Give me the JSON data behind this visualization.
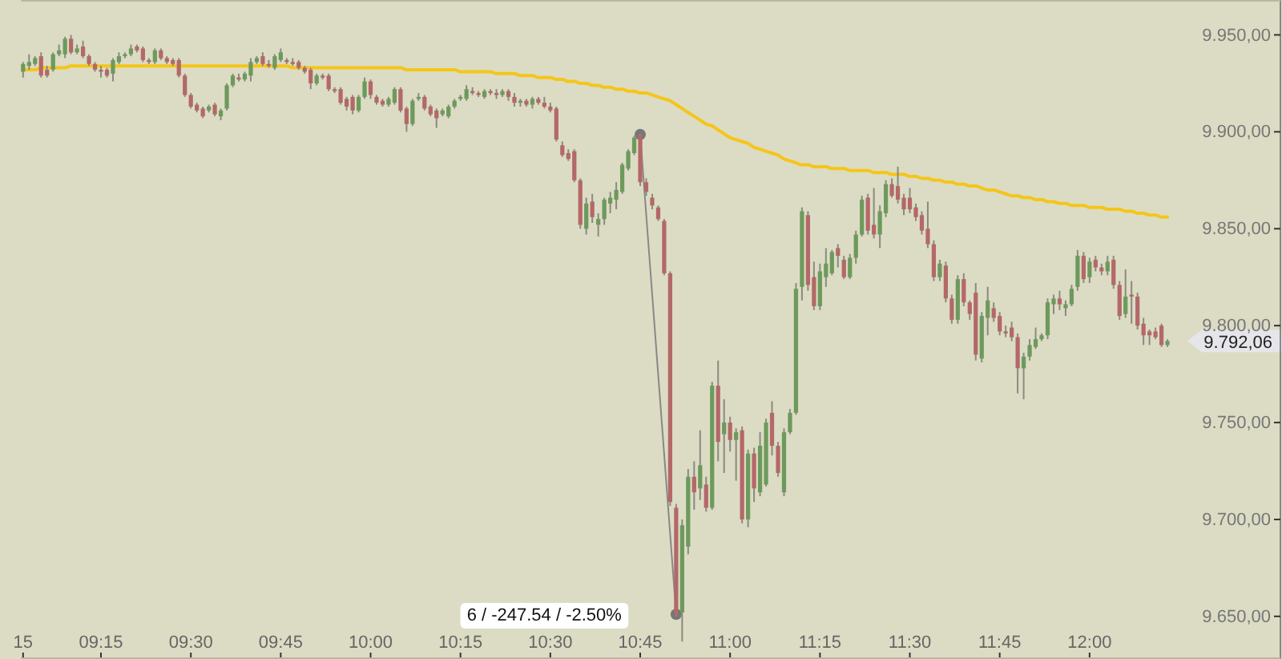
{
  "chart_data": {
    "type": "candlestick",
    "categories": [
      "15",
      null,
      null,
      null,
      null,
      null,
      null,
      null,
      null,
      null,
      null,
      null,
      null,
      "09:15",
      null,
      null,
      null,
      null,
      null,
      null,
      null,
      null,
      null,
      null,
      null,
      null,
      null,
      null,
      "09:30",
      null,
      null,
      null,
      null,
      null,
      null,
      null,
      null,
      null,
      null,
      null,
      null,
      null,
      null,
      "09:45",
      null,
      null,
      null,
      null,
      null,
      null,
      null,
      null,
      null,
      null,
      null,
      null,
      null,
      null,
      "10:00",
      null,
      null,
      null,
      null,
      null,
      null,
      null,
      null,
      null,
      null,
      null,
      null,
      null,
      null,
      "10:15",
      null,
      null,
      null,
      null,
      null,
      null,
      null,
      null,
      null,
      null,
      null,
      null,
      null,
      null,
      "10:30",
      null,
      null,
      null,
      null,
      null,
      null,
      null,
      null,
      null,
      null,
      null,
      null,
      null,
      null,
      "10:45",
      null,
      null,
      null,
      null,
      null,
      null,
      null,
      null,
      null,
      null,
      null,
      null,
      null,
      null,
      "11:00",
      null,
      null,
      null,
      null,
      null,
      null,
      null,
      null,
      null,
      null,
      null,
      null,
      null,
      null,
      "11:15",
      null,
      null,
      null,
      null,
      null,
      null,
      null,
      null,
      null,
      null,
      null,
      null,
      null,
      null,
      "11:30",
      null,
      null,
      null,
      null,
      null,
      null,
      null,
      null,
      null,
      null,
      null,
      null,
      null,
      null,
      "11:45",
      null,
      null,
      null,
      null,
      null,
      null,
      null,
      null,
      null,
      null,
      null,
      null,
      null,
      null,
      "12:00",
      null,
      null,
      null,
      null,
      null,
      null,
      null,
      null,
      null,
      null,
      null,
      null,
      null
    ],
    "ohlc": [
      [
        9931,
        9936,
        9928,
        9935
      ],
      [
        9934,
        9940,
        9932,
        9936
      ],
      [
        9935,
        9939,
        9934,
        9938
      ],
      [
        9939,
        9941,
        9928,
        9929
      ],
      [
        9932,
        9934,
        9928,
        9929
      ],
      [
        9932,
        9941,
        9931,
        9940
      ],
      [
        9940,
        9945,
        9939,
        9942
      ],
      [
        9940,
        9949,
        9938,
        9948
      ],
      [
        9948,
        9950,
        9940,
        9941
      ],
      [
        9941,
        9945,
        9940,
        9943
      ],
      [
        9944,
        9947,
        9938,
        9939
      ],
      [
        9939,
        9940,
        9934,
        9935
      ],
      [
        9935,
        9936,
        9931,
        9932
      ],
      [
        9932,
        9934,
        9928,
        9931
      ],
      [
        9932,
        9933,
        9928,
        9929
      ],
      [
        9930,
        9938,
        9926,
        9937
      ],
      [
        9936,
        9941,
        9935,
        9939
      ],
      [
        9939,
        9941,
        9938,
        9940
      ],
      [
        9940,
        9945,
        9939,
        9943
      ],
      [
        9944,
        9945,
        9941,
        9942
      ],
      [
        9943,
        9944,
        9936,
        9937
      ],
      [
        9937,
        9938,
        9935,
        9936
      ],
      [
        9936,
        9943,
        9935,
        9942
      ],
      [
        9942,
        9943,
        9937,
        9938
      ],
      [
        9938,
        9939,
        9935,
        9936
      ],
      [
        9937,
        9938,
        9934,
        9935
      ],
      [
        9937,
        9938,
        9928,
        9929
      ],
      [
        9929,
        9930,
        9918,
        9919
      ],
      [
        9919,
        9920,
        9912,
        9913
      ],
      [
        9914,
        9915,
        9910,
        9911
      ],
      [
        9912,
        9913,
        9907,
        9908
      ],
      [
        9911,
        9914,
        9910,
        9913
      ],
      [
        9914,
        9915,
        9908,
        9909
      ],
      [
        9908,
        9912,
        9906,
        9911
      ],
      [
        9912,
        9925,
        9911,
        9924
      ],
      [
        9924,
        9930,
        9923,
        9929
      ],
      [
        9928,
        9930,
        9926,
        9927
      ],
      [
        9927,
        9931,
        9926,
        9930
      ],
      [
        9929,
        9938,
        9926,
        9936
      ],
      [
        9936,
        9939,
        9935,
        9938
      ],
      [
        9939,
        9941,
        9934,
        9935
      ],
      [
        9935,
        9937,
        9933,
        9934
      ],
      [
        9933,
        9940,
        9932,
        9939
      ],
      [
        9937,
        9943,
        9936,
        9941
      ],
      [
        9937,
        9938,
        9935,
        9936
      ],
      [
        9936,
        9938,
        9934,
        9935
      ],
      [
        9936,
        9937,
        9932,
        9933
      ],
      [
        9933,
        9934,
        9930,
        9931
      ],
      [
        9932,
        9933,
        9922,
        9925
      ],
      [
        9925,
        9930,
        9924,
        9929
      ],
      [
        9929,
        9930,
        9927,
        9928
      ],
      [
        9929,
        9930,
        9921,
        9922
      ],
      [
        9922,
        9923,
        9920,
        9921
      ],
      [
        9922,
        9923,
        9914,
        9915
      ],
      [
        9917,
        9918,
        9911,
        9913
      ],
      [
        9918,
        9919,
        9909,
        9911
      ],
      [
        9911,
        9919,
        9910,
        9918
      ],
      [
        9918,
        9928,
        9917,
        9926
      ],
      [
        9926,
        9927,
        9917,
        9919
      ],
      [
        9918,
        9919,
        9914,
        9915
      ],
      [
        9916,
        9917,
        9913,
        9914
      ],
      [
        9914,
        9918,
        9913,
        9917
      ],
      [
        9915,
        9923,
        9914,
        9922
      ],
      [
        9922,
        9923,
        9910,
        9911
      ],
      [
        9912,
        9913,
        9900,
        9904
      ],
      [
        9904,
        9917,
        9903,
        9916
      ],
      [
        9917,
        9920,
        9916,
        9918
      ],
      [
        9918,
        9919,
        9911,
        9912
      ],
      [
        9913,
        9914,
        9908,
        9909
      ],
      [
        9911,
        9912,
        9902,
        9907
      ],
      [
        9909,
        9912,
        9908,
        9911
      ],
      [
        9908,
        9914,
        9907,
        9913
      ],
      [
        9913,
        9917,
        9912,
        9916
      ],
      [
        9917,
        9919,
        9916,
        9918
      ],
      [
        9917,
        9924,
        9916,
        9922
      ],
      [
        9921,
        9923,
        9919,
        9920
      ],
      [
        9920,
        9921,
        9918,
        9919
      ],
      [
        9918,
        9922,
        9917,
        9921
      ],
      [
        9921,
        9922,
        9919,
        9920
      ],
      [
        9920,
        9922,
        9917,
        9919
      ],
      [
        9919,
        9922,
        9918,
        9921
      ],
      [
        9921,
        9922,
        9916,
        9918
      ],
      [
        9918,
        9920,
        9913,
        9915
      ],
      [
        9915,
        9917,
        9913,
        9916
      ],
      [
        9916,
        9917,
        9913,
        9914
      ],
      [
        9914,
        9918,
        9912,
        9917
      ],
      [
        9917,
        9918,
        9914,
        9915
      ],
      [
        9915,
        9918,
        9912,
        9913
      ],
      [
        9913,
        9915,
        9910,
        9911
      ],
      [
        9912,
        9913,
        9895,
        9896
      ],
      [
        9893,
        9895,
        9887,
        9888
      ],
      [
        9889,
        9891,
        9885,
        9886
      ],
      [
        9890,
        9891,
        9874,
        9875
      ],
      [
        9875,
        9876,
        9850,
        9852
      ],
      [
        9850,
        9866,
        9847,
        9863
      ],
      [
        9864,
        9868,
        9853,
        9856
      ],
      [
        9852,
        9858,
        9846,
        9855
      ],
      [
        9855,
        9866,
        9852,
        9865
      ],
      [
        9863,
        9869,
        9858,
        9866
      ],
      [
        9865,
        9874,
        9860,
        9870
      ],
      [
        9869,
        9884,
        9868,
        9883
      ],
      [
        9881,
        9891,
        9880,
        9890
      ],
      [
        9889,
        9898,
        9888,
        9897
      ],
      [
        9898.6,
        9899,
        9872,
        9874
      ],
      [
        9874,
        9876,
        9867,
        9869
      ],
      [
        9866,
        9868,
        9860,
        9862
      ],
      [
        9861,
        9862,
        9854,
        9855
      ],
      [
        9854,
        9855,
        9826,
        9827
      ],
      [
        9827,
        9828,
        9707,
        9709
      ],
      [
        9706,
        9708,
        9650,
        9651.06
      ],
      [
        9652,
        9700,
        9637,
        9697
      ],
      [
        9686,
        9726,
        9682,
        9722
      ],
      [
        9722,
        9730,
        9705,
        9714
      ],
      [
        9716,
        9746,
        9710,
        9728
      ],
      [
        9718,
        9722,
        9704,
        9706
      ],
      [
        9706,
        9771,
        9705,
        9769
      ],
      [
        9769,
        9782,
        9730,
        9740
      ],
      [
        9744,
        9762,
        9724,
        9750
      ],
      [
        9750,
        9753,
        9735,
        9741
      ],
      [
        9741,
        9747,
        9720,
        9745
      ],
      [
        9746,
        9748,
        9698,
        9700
      ],
      [
        9700,
        9736,
        9696,
        9734
      ],
      [
        9734,
        9737,
        9709,
        9716
      ],
      [
        9714,
        9745,
        9712,
        9738
      ],
      [
        9718,
        9752,
        9717,
        9750
      ],
      [
        9755,
        9761,
        9733,
        9738
      ],
      [
        9738,
        9740,
        9722,
        9724
      ],
      [
        9714,
        9747,
        9712,
        9745
      ],
      [
        9745,
        9757,
        9744,
        9755
      ],
      [
        9755,
        9822,
        9754,
        9819
      ],
      [
        9820,
        9861,
        9813,
        9859
      ],
      [
        9857,
        9859,
        9818,
        9821
      ],
      [
        9825,
        9833,
        9808,
        9810
      ],
      [
        9810,
        9832,
        9808,
        9828
      ],
      [
        9825,
        9840,
        9820,
        9832
      ],
      [
        9827,
        9839,
        9826,
        9838
      ],
      [
        9840,
        9842,
        9830,
        9836
      ],
      [
        9834,
        9836,
        9824,
        9825
      ],
      [
        9825,
        9837,
        9824,
        9835
      ],
      [
        9835,
        9849,
        9832,
        9847
      ],
      [
        9847,
        9867,
        9846,
        9865
      ],
      [
        9866,
        9868,
        9847,
        9849
      ],
      [
        9852,
        9871,
        9845,
        9847
      ],
      [
        9847,
        9862,
        9840,
        9859
      ],
      [
        9858,
        9875,
        9856,
        9873
      ],
      [
        9873,
        9876,
        9866,
        9867
      ],
      [
        9872,
        9882,
        9863,
        9865
      ],
      [
        9866,
        9868,
        9857,
        9860
      ],
      [
        9866,
        9871,
        9858,
        9860
      ],
      [
        9861,
        9863,
        9854,
        9856
      ],
      [
        9857,
        9859,
        9847,
        9849
      ],
      [
        9850,
        9864,
        9840,
        9842
      ],
      [
        9842,
        9844,
        9823,
        9825
      ],
      [
        9825,
        9834,
        9823,
        9832
      ],
      [
        9831,
        9833,
        9812,
        9814
      ],
      [
        9814,
        9816,
        9801,
        9803
      ],
      [
        9803,
        9826,
        9801,
        9824
      ],
      [
        9824,
        9827,
        9810,
        9812
      ],
      [
        9812,
        9813,
        9803,
        9806
      ],
      [
        9817,
        9822,
        9782,
        9785
      ],
      [
        9783,
        9807,
        9781,
        9805
      ],
      [
        9804,
        9820,
        9795,
        9813
      ],
      [
        9809,
        9812,
        9802,
        9804
      ],
      [
        9805,
        9807,
        9795,
        9797
      ],
      [
        9797,
        9800,
        9794,
        9796
      ],
      [
        9799,
        9802,
        9792,
        9794
      ],
      [
        9794,
        9796,
        9765,
        9778
      ],
      [
        9778,
        9786,
        9762,
        9784
      ],
      [
        9784,
        9793,
        9782,
        9790
      ],
      [
        9789,
        9799,
        9788,
        9793
      ],
      [
        9793,
        9796,
        9792,
        9795
      ],
      [
        9795,
        9814,
        9793,
        9812
      ],
      [
        9811,
        9816,
        9806,
        9814
      ],
      [
        9814,
        9818,
        9808,
        9811
      ],
      [
        9809,
        9813,
        9805,
        9811
      ],
      [
        9811,
        9821,
        9810,
        9819
      ],
      [
        9820,
        9839,
        9818,
        9836
      ],
      [
        9836,
        9838,
        9822,
        9824
      ],
      [
        9825,
        9835,
        9822,
        9833
      ],
      [
        9834,
        9836,
        9828,
        9830
      ],
      [
        9830,
        9832,
        9826,
        9828
      ],
      [
        9828,
        9836,
        9826,
        9833
      ],
      [
        9834,
        9836,
        9819,
        9821
      ],
      [
        9821,
        9823,
        9803,
        9805
      ],
      [
        9806,
        9829,
        9804,
        9815
      ],
      [
        9816,
        9823,
        9801,
        9815
      ],
      [
        9815,
        9817,
        9798,
        9800
      ],
      [
        9801,
        9804,
        9790,
        9795
      ],
      [
        9797,
        9798,
        9790,
        9795
      ],
      [
        9797,
        9799,
        9793,
        9794
      ],
      [
        9800,
        9801,
        9789,
        9790
      ],
      [
        9790,
        9793,
        9789,
        9792.06
      ]
    ],
    "series": [
      {
        "type": "line",
        "color": "#f5c518",
        "values": [
          9932,
          9932,
          9932,
          9933,
          9933,
          9933,
          9933,
          9933,
          9934,
          9934,
          9934,
          9934,
          9934,
          9934,
          9934,
          9934,
          9934,
          9934,
          9934,
          9934,
          9934,
          9934,
          9934,
          9934,
          9934,
          9934,
          9934,
          9934,
          9934,
          9934,
          9934,
          9934,
          9934,
          9934,
          9934,
          9934,
          9934,
          9934,
          9934,
          9934,
          9934,
          9934,
          9934,
          9934,
          9934,
          9933,
          9933,
          9933,
          9933,
          9933,
          9933,
          9933,
          9933,
          9933,
          9933,
          9933,
          9933,
          9933,
          9933,
          9933,
          9933,
          9933,
          9933,
          9933,
          9932,
          9932,
          9932,
          9932,
          9932,
          9932,
          9932,
          9932,
          9932,
          9931,
          9931,
          9931,
          9931,
          9931,
          9931,
          9930,
          9930,
          9930,
          9930,
          9929,
          9929,
          9929,
          9928,
          9928,
          9928,
          9927,
          9927,
          9926,
          9926,
          9925,
          9925,
          9924,
          9924,
          9923,
          9923,
          9922,
          9922,
          9921,
          9921,
          9920,
          9920,
          9919,
          9918,
          9917,
          9916,
          9914,
          9912,
          9910,
          9908,
          9906,
          9904,
          9903,
          9901,
          9899,
          9897,
          9896,
          9895,
          9894,
          9892,
          9891,
          9890,
          9889,
          9888,
          9886,
          9885,
          9884,
          9883,
          9883,
          9882,
          9882,
          9882,
          9881,
          9881,
          9881,
          9880,
          9880,
          9880,
          9880,
          9879,
          9879,
          9879,
          9878,
          9878,
          9878,
          9877,
          9877,
          9876,
          9876,
          9875,
          9875,
          9874,
          9874,
          9873,
          9873,
          9872,
          9872,
          9871,
          9870,
          9870,
          9869,
          9868,
          9867,
          9867,
          9866,
          9866,
          9865,
          9865,
          9864,
          9864,
          9863,
          9863,
          9862,
          9862,
          9862,
          9861,
          9861,
          9861,
          9860,
          9860,
          9860,
          9859,
          9859,
          9858,
          9858,
          9857,
          9857,
          9856,
          9856
        ]
      }
    ],
    "ylim": [
      9628,
      9968
    ],
    "yticks": [
      {
        "value": 9650,
        "label": "9.650,00"
      },
      {
        "value": 9700,
        "label": "9.700,00"
      },
      {
        "value": 9750,
        "label": "9.750,00"
      },
      {
        "value": 9800,
        "label": "9.800,00"
      },
      {
        "value": 9850,
        "label": "9.850,00"
      },
      {
        "value": 9900,
        "label": "9.900,00"
      },
      {
        "value": 9950,
        "label": "9.950,00"
      }
    ],
    "annotations": [
      "6 / -247.54 / -2.50%",
      "9.792,06"
    ]
  }
}
